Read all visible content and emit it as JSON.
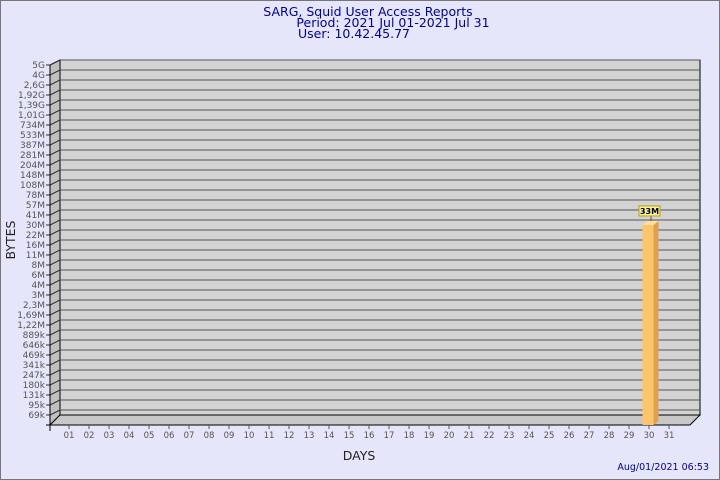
{
  "chart_data": {
    "type": "bar",
    "title": [
      "SARG, Squid User Access Reports",
      "Period: 2021 Jul 01-2021 Jul 31",
      "User: 10.42.45.77"
    ],
    "xlabel": "DAYS",
    "ylabel": "BYTES",
    "y_scale": "log",
    "y_ticks": [
      "69k",
      "95k",
      "131k",
      "180k",
      "247k",
      "341k",
      "469k",
      "646k",
      "889k",
      "1,22M",
      "1,69M",
      "2,3M",
      "3M",
      "4M",
      "6M",
      "8M",
      "11M",
      "16M",
      "22M",
      "30M",
      "41M",
      "57M",
      "78M",
      "108M",
      "148M",
      "204M",
      "281M",
      "387M",
      "533M",
      "734M",
      "1,01G",
      "1,39G",
      "1,92G",
      "2,6G",
      "4G",
      "5G"
    ],
    "y_tick_values": [
      69000,
      95000,
      131000,
      180000,
      247000,
      341000,
      469000,
      646000,
      889000,
      1220000,
      1690000,
      2300000,
      3000000,
      4000000,
      6000000,
      8000000,
      11000000,
      16000000,
      22000000,
      30000000,
      41000000,
      57000000,
      78000000,
      108000000,
      148000000,
      204000000,
      281000000,
      387000000,
      533000000,
      734000000,
      1010000000,
      1390000000,
      1920000000,
      2600000000,
      4000000000,
      5000000000
    ],
    "categories": [
      "01",
      "02",
      "03",
      "04",
      "05",
      "06",
      "07",
      "08",
      "09",
      "10",
      "11",
      "12",
      "13",
      "14",
      "15",
      "16",
      "17",
      "18",
      "19",
      "20",
      "21",
      "22",
      "23",
      "24",
      "25",
      "26",
      "27",
      "28",
      "29",
      "30",
      "31"
    ],
    "bars": [
      {
        "day": "30",
        "value": 33000000,
        "label": "33M"
      }
    ],
    "grid": true,
    "colors": {
      "bar_front": "#fdc56a",
      "bar_side": "#dda24c",
      "bar_top": "#ffe09a",
      "plot_bg": "#d3d3d3",
      "label_bg": "#f6f0a0"
    }
  },
  "footer": {
    "timestamp": "Aug/01/2021 06:53"
  }
}
